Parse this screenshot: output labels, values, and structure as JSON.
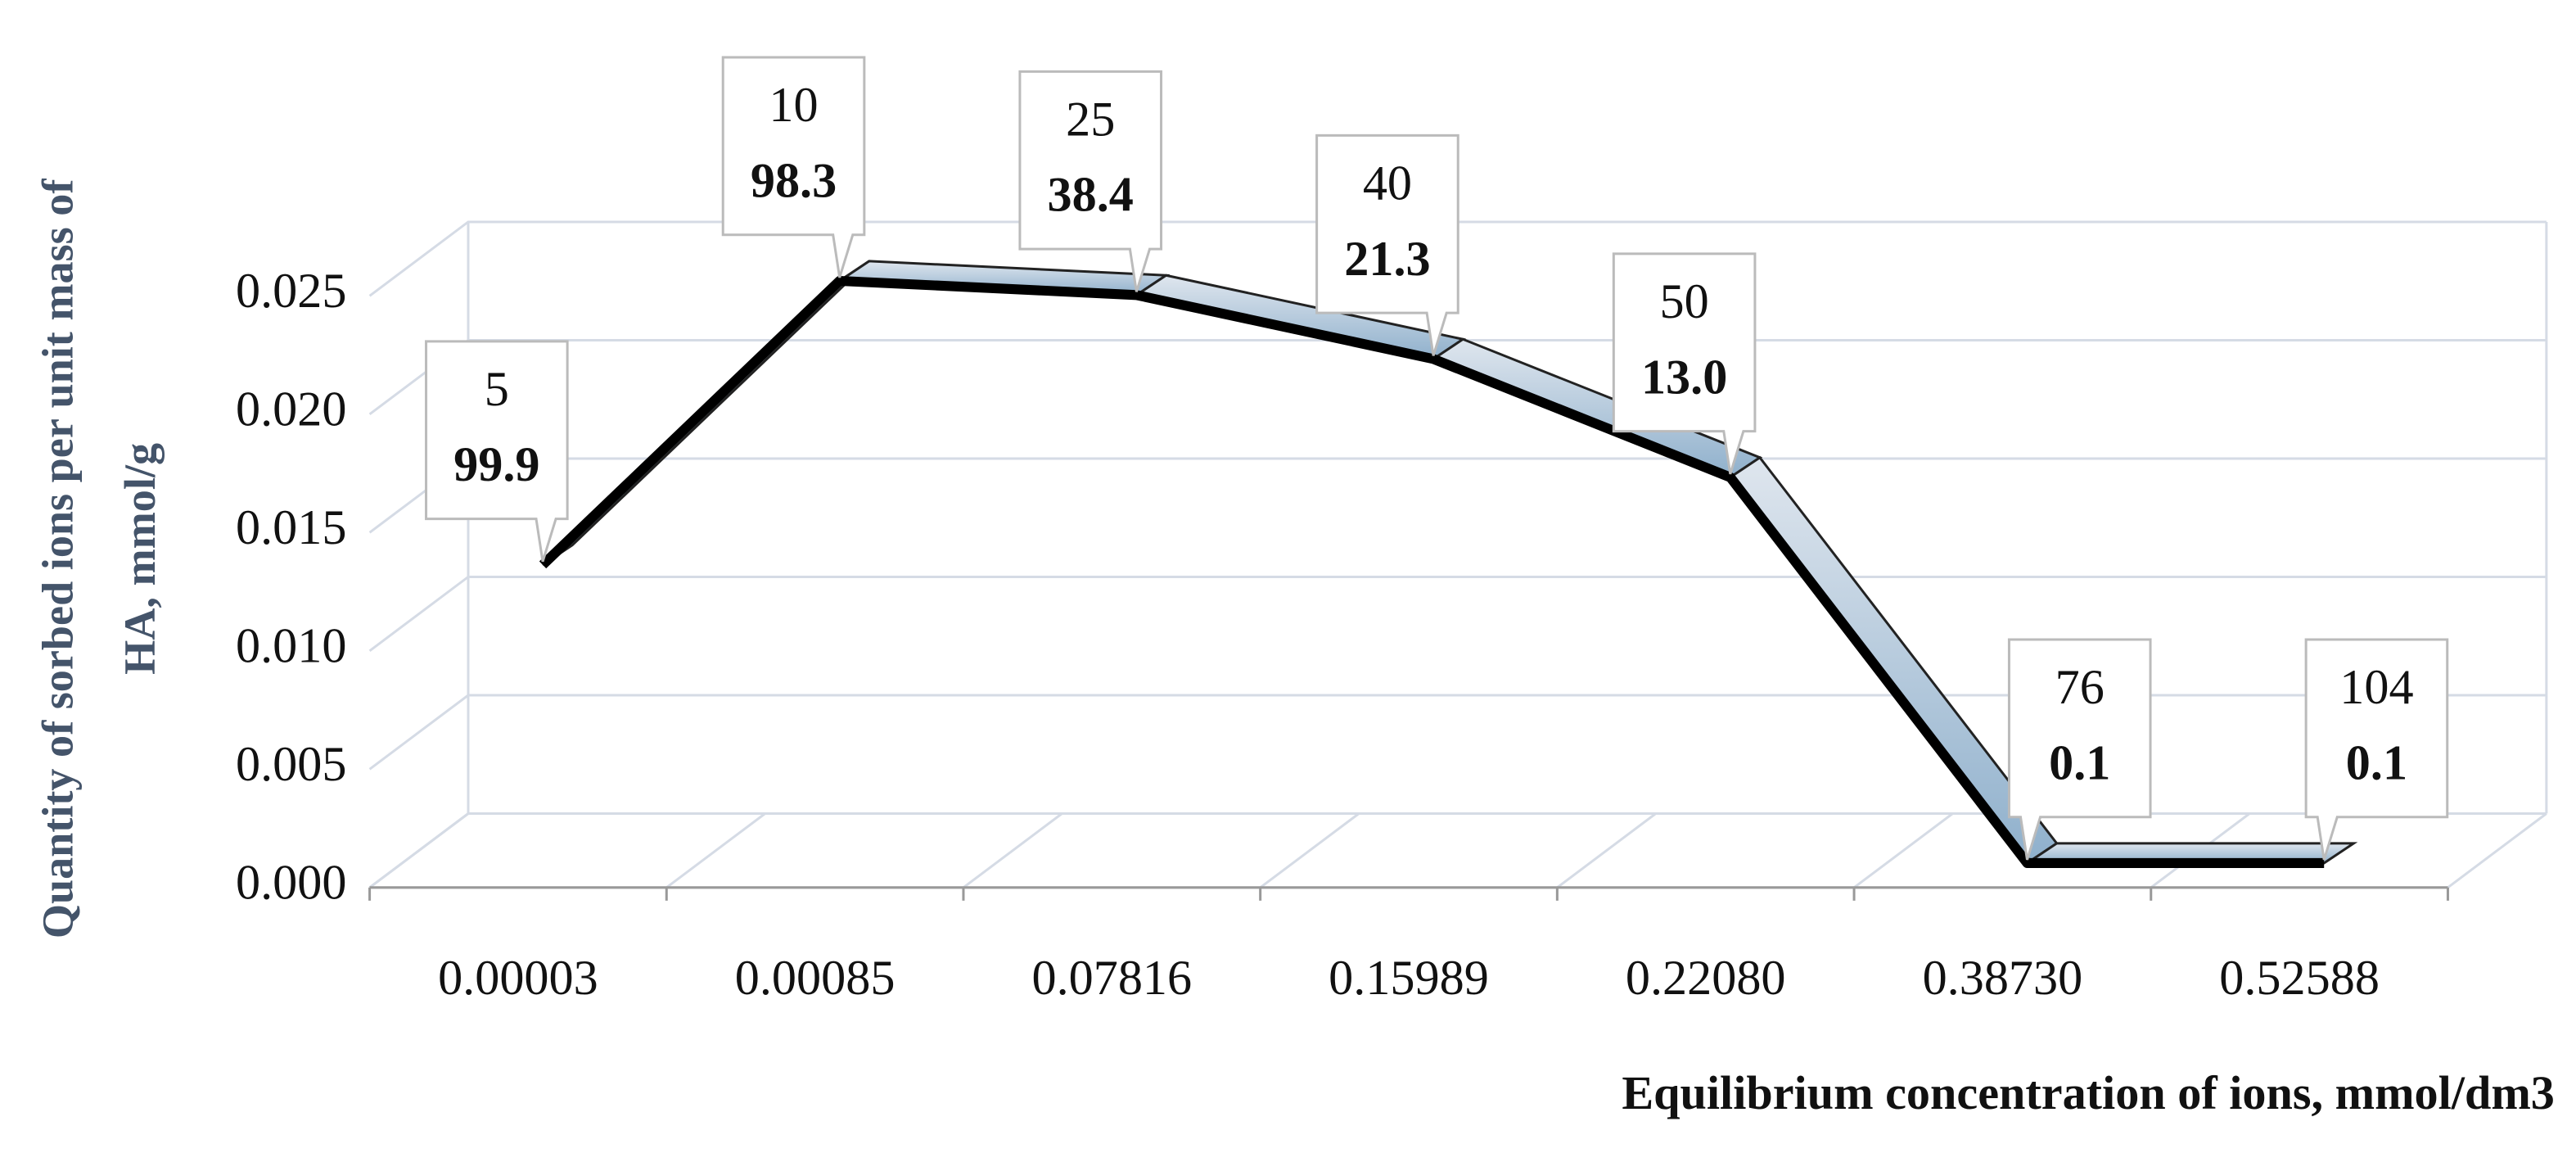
{
  "chart_data": {
    "type": "line3d",
    "y_title": [
      "Quantity of sorbed ions per unit mass of",
      "HA, mmol/g"
    ],
    "x_title": "Equilibrium concentration of ions, mmol/dm3",
    "categories": [
      "0.00003",
      "0.00085",
      "0.07816",
      "0.15989",
      "0.22080",
      "0.38730",
      "0.52588"
    ],
    "values": [
      0.0128,
      0.0248,
      0.0242,
      0.0215,
      0.0165,
      0.0002,
      0.0002
    ],
    "annotations": [
      {
        "top": "5",
        "bottom": "99.9"
      },
      {
        "top": "10",
        "bottom": "98.3"
      },
      {
        "top": "25",
        "bottom": "38.4"
      },
      {
        "top": "40",
        "bottom": "21.3"
      },
      {
        "top": "50",
        "bottom": "13.0"
      },
      {
        "top": "76",
        "bottom": "0.1"
      },
      {
        "top": "104",
        "bottom": "0.1"
      }
    ],
    "color": "#a9c3d9",
    "ylim": [
      0,
      0.025
    ],
    "yticks": [
      {
        "value": 0,
        "label": "0.000"
      },
      {
        "value": 0.005,
        "label": "0.005"
      },
      {
        "value": 0.01,
        "label": "0.010"
      },
      {
        "value": 0.015,
        "label": "0.015"
      },
      {
        "value": 0.02,
        "label": "0.020"
      },
      {
        "value": 0.025,
        "label": "0.025"
      }
    ],
    "grid": true
  }
}
